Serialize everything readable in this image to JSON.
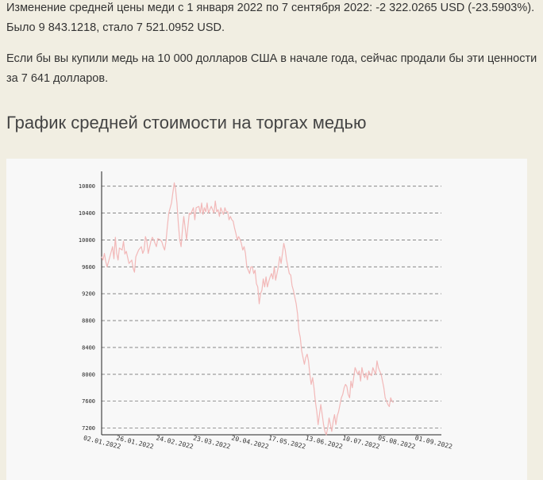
{
  "text": {
    "paragraph1": "Изменение средней цены меди с 1 января 2022 по 7 сентября 2022: -2 322.0265 USD (-23.5903%). Было 9 843.1218, стало 7 521.0952 USD.",
    "paragraph2": "Если бы вы купили медь на 10 000 долларов США в начале года, сейчас продали бы эти ценности за 7 641 долларов.",
    "heading": "График средней стоимости на торгах медью"
  },
  "colors": {
    "line": "#f2b8b8",
    "grid": "#777777",
    "axis": "#222222"
  },
  "chart_data": {
    "type": "line",
    "title": "",
    "xlabel": "",
    "ylabel": "",
    "ylim": [
      7100,
      10950
    ],
    "xlim": [
      "2022-01-02",
      "2022-09-07"
    ],
    "grid": true,
    "y_ticks": [
      {
        "value": 7200,
        "label": "7200"
      },
      {
        "value": 7600,
        "label": "7600"
      },
      {
        "value": 8000,
        "label": "8000"
      },
      {
        "value": 8400,
        "label": "8400"
      },
      {
        "value": 8800,
        "label": "8800"
      },
      {
        "value": 9200,
        "label": "9200"
      },
      {
        "value": 9600,
        "label": "9600"
      },
      {
        "value": 10000,
        "label": "10000"
      },
      {
        "value": 10400,
        "label": "10400"
      },
      {
        "value": 10800,
        "label": "10800"
      }
    ],
    "x_ticks": [
      {
        "value": "2022-01-02",
        "label": "02.01.2022"
      },
      {
        "value": "2022-01-26",
        "label": "26.01.2022"
      },
      {
        "value": "2022-02-24",
        "label": "24.02.2022"
      },
      {
        "value": "2022-03-23",
        "label": "23.03.2022"
      },
      {
        "value": "2022-04-20",
        "label": "20.04.2022"
      },
      {
        "value": "2022-05-17",
        "label": "17.05.2022"
      },
      {
        "value": "2022-06-13",
        "label": "13.06.2022"
      },
      {
        "value": "2022-07-10",
        "label": "10.07.2022"
      },
      {
        "value": "2022-08-05",
        "label": "05.08.2022"
      },
      {
        "value": "2022-09-01",
        "label": "01.09.2022"
      }
    ],
    "series": [
      {
        "points": [
          [
            "2022-01-02",
            9750
          ],
          [
            "2022-01-03",
            9700
          ],
          [
            "2022-01-04",
            9800
          ],
          [
            "2022-01-05",
            9680
          ],
          [
            "2022-01-06",
            9600
          ],
          [
            "2022-01-08",
            9750
          ],
          [
            "2022-01-10",
            9900
          ],
          [
            "2022-01-11",
            9720
          ],
          [
            "2022-01-12",
            10040
          ],
          [
            "2022-01-13",
            9800
          ],
          [
            "2022-01-14",
            9700
          ],
          [
            "2022-01-15",
            9880
          ],
          [
            "2022-01-17",
            9850
          ],
          [
            "2022-01-18",
            9980
          ],
          [
            "2022-01-19",
            9790
          ],
          [
            "2022-01-20",
            9830
          ],
          [
            "2022-01-22",
            9650
          ],
          [
            "2022-01-24",
            9700
          ],
          [
            "2022-01-25",
            9580
          ],
          [
            "2022-01-26",
            9520
          ],
          [
            "2022-01-27",
            9750
          ],
          [
            "2022-01-29",
            9850
          ],
          [
            "2022-01-31",
            9900
          ],
          [
            "2022-02-01",
            9800
          ],
          [
            "2022-02-02",
            9850
          ],
          [
            "2022-02-03",
            10050
          ],
          [
            "2022-02-04",
            9980
          ],
          [
            "2022-02-05",
            9800
          ],
          [
            "2022-02-07",
            9980
          ],
          [
            "2022-02-08",
            10040
          ],
          [
            "2022-02-09",
            10000
          ],
          [
            "2022-02-11",
            9900
          ],
          [
            "2022-02-12",
            10020
          ],
          [
            "2022-02-14",
            10000
          ],
          [
            "2022-02-15",
            9970
          ],
          [
            "2022-02-16",
            9900
          ],
          [
            "2022-02-17",
            9850
          ],
          [
            "2022-02-18",
            9980
          ],
          [
            "2022-02-19",
            10200
          ],
          [
            "2022-02-20",
            10400
          ],
          [
            "2022-02-22",
            10550
          ],
          [
            "2022-02-23",
            10700
          ],
          [
            "2022-02-24",
            10850
          ],
          [
            "2022-02-25",
            10750
          ],
          [
            "2022-02-26",
            10550
          ],
          [
            "2022-02-27",
            10250
          ],
          [
            "2022-02-28",
            10000
          ],
          [
            "2022-03-01",
            9900
          ],
          [
            "2022-03-02",
            10150
          ],
          [
            "2022-03-03",
            10350
          ],
          [
            "2022-03-05",
            10000
          ],
          [
            "2022-03-06",
            10200
          ],
          [
            "2022-03-07",
            10400
          ],
          [
            "2022-03-08",
            10380
          ],
          [
            "2022-03-09",
            10430
          ],
          [
            "2022-03-10",
            10480
          ],
          [
            "2022-03-11",
            10300
          ],
          [
            "2022-03-12",
            10480
          ],
          [
            "2022-03-14",
            10500
          ],
          [
            "2022-03-15",
            10400
          ],
          [
            "2022-03-16",
            10550
          ],
          [
            "2022-03-17",
            10380
          ],
          [
            "2022-03-18",
            10480
          ],
          [
            "2022-03-19",
            10420
          ],
          [
            "2022-03-20",
            10550
          ],
          [
            "2022-03-21",
            10400
          ],
          [
            "2022-03-22",
            10450
          ],
          [
            "2022-03-23",
            10500
          ],
          [
            "2022-03-24",
            10450
          ],
          [
            "2022-03-25",
            10400
          ],
          [
            "2022-03-26",
            10580
          ],
          [
            "2022-03-27",
            10420
          ],
          [
            "2022-03-28",
            10450
          ],
          [
            "2022-03-29",
            10350
          ],
          [
            "2022-03-30",
            10480
          ],
          [
            "2022-03-31",
            10420
          ],
          [
            "2022-04-01",
            10380
          ],
          [
            "2022-04-02",
            10480
          ],
          [
            "2022-04-03",
            10420
          ],
          [
            "2022-04-04",
            10420
          ],
          [
            "2022-04-05",
            10300
          ],
          [
            "2022-04-06",
            10350
          ],
          [
            "2022-04-07",
            10300
          ],
          [
            "2022-04-08",
            10280
          ],
          [
            "2022-04-09",
            10180
          ],
          [
            "2022-04-10",
            10100
          ],
          [
            "2022-04-11",
            10000
          ],
          [
            "2022-04-12",
            10050
          ],
          [
            "2022-04-13",
            10010
          ],
          [
            "2022-04-14",
            9950
          ],
          [
            "2022-04-15",
            9850
          ],
          [
            "2022-04-16",
            9900
          ],
          [
            "2022-04-17",
            9800
          ],
          [
            "2022-04-18",
            9600
          ],
          [
            "2022-04-19",
            9550
          ],
          [
            "2022-04-20",
            9500
          ],
          [
            "2022-04-21",
            9600
          ],
          [
            "2022-04-22",
            9600
          ],
          [
            "2022-04-23",
            9500
          ],
          [
            "2022-04-24",
            9550
          ],
          [
            "2022-04-25",
            9350
          ],
          [
            "2022-04-26",
            9300
          ],
          [
            "2022-04-27",
            9050
          ],
          [
            "2022-04-28",
            9200
          ],
          [
            "2022-04-29",
            9250
          ],
          [
            "2022-04-30",
            9420
          ],
          [
            "2022-05-01",
            9300
          ],
          [
            "2022-05-02",
            9450
          ],
          [
            "2022-05-03",
            9300
          ],
          [
            "2022-05-04",
            9380
          ],
          [
            "2022-05-05",
            9450
          ],
          [
            "2022-05-06",
            9500
          ],
          [
            "2022-05-07",
            9420
          ],
          [
            "2022-05-08",
            9600
          ],
          [
            "2022-05-09",
            9400
          ],
          [
            "2022-05-10",
            9500
          ],
          [
            "2022-05-11",
            9600
          ],
          [
            "2022-05-12",
            9750
          ],
          [
            "2022-05-13",
            9650
          ],
          [
            "2022-05-14",
            9800
          ],
          [
            "2022-05-15",
            9950
          ],
          [
            "2022-05-16",
            9850
          ],
          [
            "2022-05-17",
            9700
          ],
          [
            "2022-05-18",
            9600
          ],
          [
            "2022-05-19",
            9500
          ],
          [
            "2022-05-20",
            9480
          ],
          [
            "2022-05-21",
            9320
          ],
          [
            "2022-05-22",
            9250
          ],
          [
            "2022-05-23",
            9150
          ],
          [
            "2022-05-24",
            9050
          ],
          [
            "2022-05-25",
            8900
          ],
          [
            "2022-05-26",
            8650
          ],
          [
            "2022-05-27",
            8550
          ],
          [
            "2022-05-28",
            8350
          ],
          [
            "2022-05-29",
            8250
          ],
          [
            "2022-05-30",
            8150
          ],
          [
            "2022-05-31",
            8250
          ],
          [
            "2022-06-01",
            8300
          ],
          [
            "2022-06-02",
            8200
          ],
          [
            "2022-06-03",
            8000
          ],
          [
            "2022-06-04",
            7850
          ],
          [
            "2022-06-05",
            7950
          ],
          [
            "2022-06-06",
            7800
          ],
          [
            "2022-06-07",
            7600
          ],
          [
            "2022-06-08",
            7450
          ],
          [
            "2022-06-09",
            7250
          ],
          [
            "2022-06-10",
            7400
          ],
          [
            "2022-06-11",
            7550
          ],
          [
            "2022-06-12",
            7400
          ],
          [
            "2022-06-13",
            7250
          ],
          [
            "2022-06-14",
            7150
          ],
          [
            "2022-06-15",
            7100
          ],
          [
            "2022-06-16",
            7200
          ],
          [
            "2022-06-17",
            7350
          ],
          [
            "2022-06-18",
            7250
          ],
          [
            "2022-06-19",
            7150
          ],
          [
            "2022-06-20",
            7300
          ],
          [
            "2022-06-21",
            7400
          ],
          [
            "2022-06-22",
            7250
          ],
          [
            "2022-06-23",
            7380
          ],
          [
            "2022-06-24",
            7450
          ],
          [
            "2022-06-25",
            7550
          ],
          [
            "2022-06-26",
            7650
          ],
          [
            "2022-06-27",
            7700
          ],
          [
            "2022-06-28",
            7800
          ],
          [
            "2022-06-29",
            7850
          ],
          [
            "2022-06-30",
            7820
          ],
          [
            "2022-07-01",
            7700
          ],
          [
            "2022-07-02",
            7650
          ],
          [
            "2022-07-03",
            7900
          ],
          [
            "2022-07-04",
            7800
          ],
          [
            "2022-07-05",
            7950
          ],
          [
            "2022-07-06",
            8100
          ],
          [
            "2022-07-07",
            8050
          ],
          [
            "2022-07-08",
            8000
          ],
          [
            "2022-07-09",
            8050
          ],
          [
            "2022-07-10",
            7900
          ],
          [
            "2022-07-11",
            8100
          ],
          [
            "2022-07-12",
            8000
          ],
          [
            "2022-07-13",
            7950
          ],
          [
            "2022-07-14",
            8020
          ],
          [
            "2022-07-15",
            7920
          ],
          [
            "2022-07-16",
            8050
          ],
          [
            "2022-07-17",
            8000
          ],
          [
            "2022-07-18",
            7980
          ],
          [
            "2022-07-19",
            8100
          ],
          [
            "2022-07-20",
            8050
          ],
          [
            "2022-07-21",
            8000
          ],
          [
            "2022-07-22",
            8200
          ],
          [
            "2022-07-23",
            8100
          ],
          [
            "2022-07-24",
            8050
          ],
          [
            "2022-07-25",
            8000
          ],
          [
            "2022-07-26",
            7900
          ],
          [
            "2022-07-27",
            7800
          ],
          [
            "2022-07-28",
            7650
          ],
          [
            "2022-07-29",
            7600
          ],
          [
            "2022-07-30",
            7550
          ],
          [
            "2022-07-31",
            7520
          ],
          [
            "2022-08-01",
            7650
          ],
          [
            "2022-08-02",
            7600
          ],
          [
            "2022-08-03",
            7580
          ]
        ]
      }
    ]
  }
}
